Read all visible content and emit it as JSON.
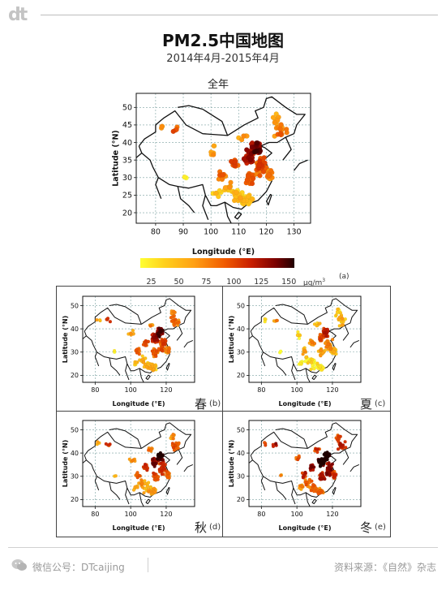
{
  "header": {
    "logo": "dt",
    "title": "PM2.5中国地图",
    "subtitle": "2014年4月-2015年4月"
  },
  "main_map": {
    "title": "全年",
    "panel_tag": "",
    "season": "",
    "xlabel": "Longitude (°E)",
    "ylabel": "Latitude (°N)",
    "xticks": [
      80,
      90,
      100,
      110,
      120,
      130
    ],
    "yticks": [
      20,
      25,
      30,
      35,
      40,
      45,
      50
    ]
  },
  "colorbar": {
    "ticks": [
      "25",
      "50",
      "75",
      "100",
      "125",
      "150"
    ],
    "unit": "μg/m",
    "unit_sup": "3",
    "tag": "(a)"
  },
  "small_maps": [
    {
      "season": "春",
      "tag": "(b)"
    },
    {
      "season": "夏",
      "tag": "(c)"
    },
    {
      "season": "秋",
      "tag": "(d)"
    },
    {
      "season": "冬",
      "tag": "(e)"
    }
  ],
  "small_axes": {
    "xlabel": "Longitude (°E)",
    "ylabel": "Latitude (°N)",
    "xticks": [
      80,
      100,
      120
    ],
    "yticks": [
      20,
      30,
      40,
      50
    ]
  },
  "footer": {
    "wechat": "微信公号：DTcaijing",
    "source": "资料来源：《自然》杂志"
  },
  "colors": {
    "low": "#ffff33",
    "mid": "#f05a00",
    "high": "#200000",
    "grid": "#7aa0a0",
    "land_border": "#111111"
  }
}
